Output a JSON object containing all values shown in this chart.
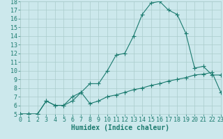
{
  "xlabel": "Humidex (Indice chaleur)",
  "bg_color": "#cce8ec",
  "grid_color": "#aacccc",
  "line_color": "#1a7a6e",
  "x_main": [
    0,
    1,
    2,
    3,
    4,
    5,
    6,
    7,
    8,
    9,
    10,
    11,
    12,
    13,
    14,
    15,
    16,
    17,
    18,
    19,
    20,
    21,
    22,
    23
  ],
  "y_main": [
    5,
    5,
    5,
    6.5,
    6,
    6,
    7,
    7.5,
    8.5,
    8.5,
    10,
    11.8,
    12,
    14,
    16.5,
    17.8,
    18,
    17.0,
    16.5,
    14.3,
    10.3,
    10.5,
    9.5,
    9.5
  ],
  "x_lower": [
    0,
    1,
    2,
    3,
    4,
    5,
    6,
    7,
    8,
    9,
    10,
    11,
    12,
    13,
    14,
    15,
    16,
    17,
    18,
    19,
    20,
    21,
    22,
    23
  ],
  "y_lower": [
    5,
    5,
    5,
    6.5,
    6,
    6,
    6.5,
    7.5,
    6.2,
    6.5,
    7.0,
    7.2,
    7.5,
    7.8,
    8.0,
    8.3,
    8.5,
    8.8,
    9.0,
    9.2,
    9.5,
    9.6,
    9.8,
    7.5
  ],
  "xlim": [
    0,
    23
  ],
  "ylim": [
    5,
    18
  ],
  "yticks": [
    5,
    6,
    7,
    8,
    9,
    10,
    11,
    12,
    13,
    14,
    15,
    16,
    17,
    18
  ],
  "xticks": [
    0,
    1,
    2,
    3,
    4,
    5,
    6,
    7,
    8,
    9,
    10,
    11,
    12,
    13,
    14,
    15,
    16,
    17,
    18,
    19,
    20,
    21,
    22,
    23
  ],
  "marker_size": 4,
  "line_width": 0.8,
  "tick_fontsize": 6,
  "xlabel_fontsize": 7
}
